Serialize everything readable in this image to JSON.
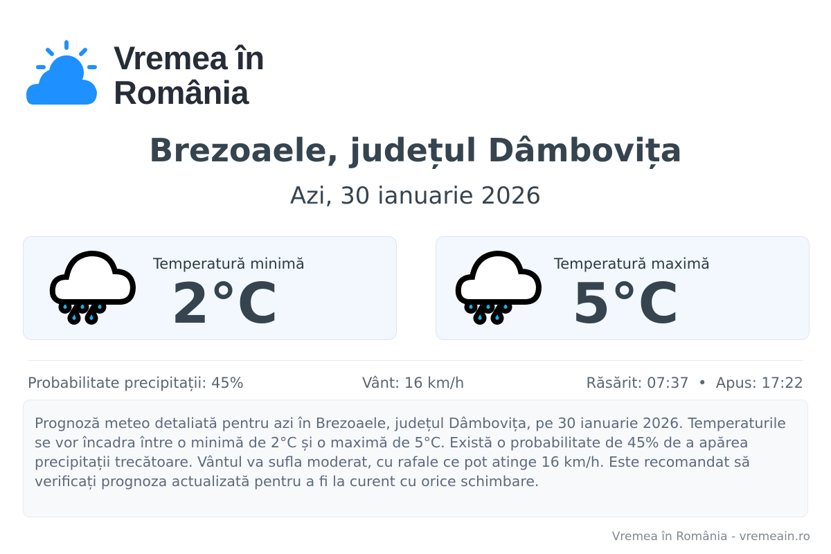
{
  "brand": {
    "name_line1": "Vremea în",
    "name_line2": "România",
    "logo_color": "#1e90ff"
  },
  "header": {
    "title": "Brezoaele, județul Dâmbovița",
    "date": "Azi, 30 ianuarie 2026"
  },
  "cards": [
    {
      "label": "Temperatură minimă",
      "value": "2°C",
      "icon": "rain-cloud-icon"
    },
    {
      "label": "Temperatură maximă",
      "value": "5°C",
      "icon": "rain-cloud-icon"
    }
  ],
  "stats": {
    "precip": "Probabilitate precipitații: 45%",
    "wind": "Vânt: 16 km/h",
    "sun": "Răsărit: 07:37  •  Apus: 17:22"
  },
  "description": "Prognoză meteo detaliată pentru azi în Brezoaele, județul Dâmbovița, pe 30 ianuarie 2026. Temperaturile se vor încadra între o minimă de 2°C și o maximă de 5°C. Există o probabilitate de 45% de a apărea precipitații trecătoare. Vântul va sufla moderat, cu rafale ce pot atinge 16 km/h. Este recomandat să verificați prognoza actualizată pentru a fi la curent cu orice schimbare.",
  "footer": "Vremea în România - vremeain.ro"
}
